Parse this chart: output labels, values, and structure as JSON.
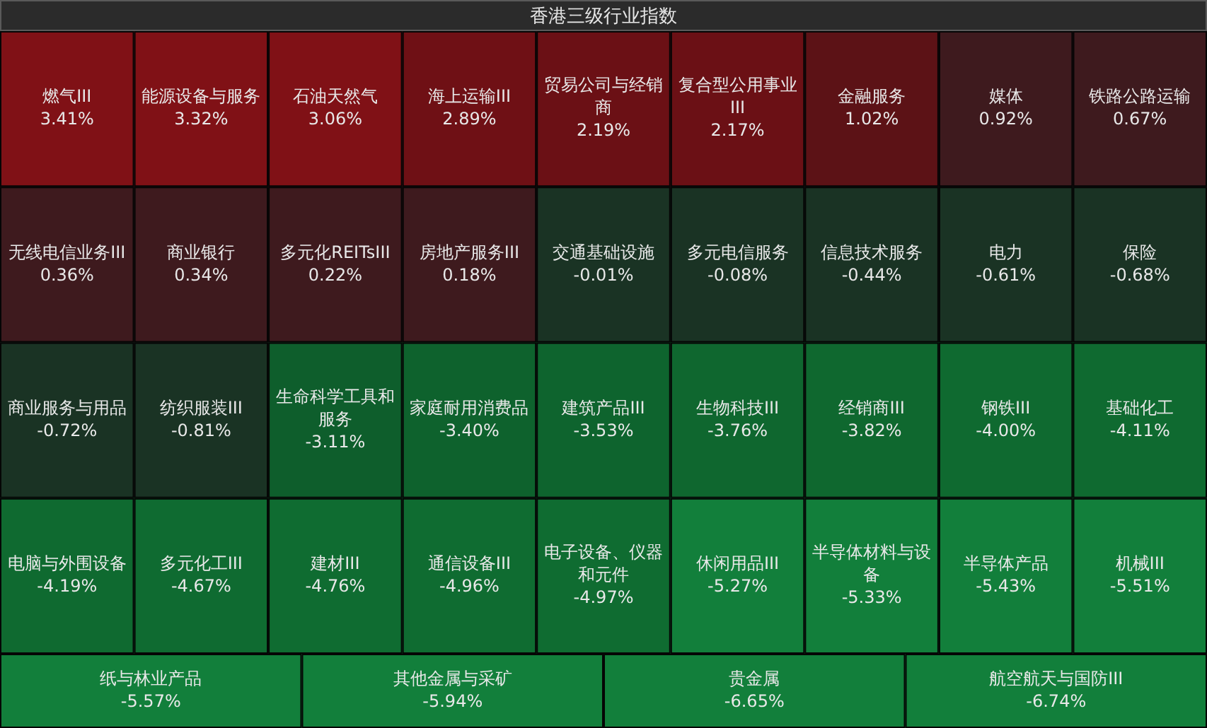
{
  "chart_data": {
    "type": "other",
    "title": "香港三级行业指数",
    "categories": [
      "燃气III",
      "能源设备与服务",
      "石油天然气",
      "海上运输III",
      "贸易公司与经销商",
      "复合型公用事业III",
      "金融服务",
      "媒体",
      "铁路公路运输",
      "无线电信业务III",
      "商业银行",
      "多元化REITsIII",
      "房地产服务III",
      "交通基础设施",
      "多元电信服务",
      "信息技术服务",
      "电力",
      "保险",
      "商业服务与用品",
      "纺织服装III",
      "生命科学工具和服务",
      "家庭耐用消费品",
      "建筑产品III",
      "生物科技III",
      "经销商III",
      "钢铁III",
      "基础化工",
      "电脑与外围设备",
      "多元化工III",
      "建材III",
      "通信设备III",
      "电子设备、仪器和元件",
      "休闲用品III",
      "半导体材料与设备",
      "半导体产品",
      "机械III",
      "纸与林业产品",
      "其他金属与采矿",
      "贵金属",
      "航空航天与国防III"
    ],
    "values": [
      3.41,
      3.32,
      3.06,
      2.89,
      2.19,
      2.17,
      1.02,
      0.92,
      0.67,
      0.36,
      0.34,
      0.22,
      0.18,
      -0.01,
      -0.08,
      -0.44,
      -0.61,
      -0.68,
      -0.72,
      -0.81,
      -3.11,
      -3.4,
      -3.53,
      -3.76,
      -3.82,
      -4.0,
      -4.11,
      -4.19,
      -4.67,
      -4.76,
      -4.96,
      -4.97,
      -5.27,
      -5.33,
      -5.43,
      -5.51,
      -5.57,
      -5.94,
      -6.65,
      -6.74
    ],
    "value_labels": [
      "3.41%",
      "3.32%",
      "3.06%",
      "2.89%",
      "2.19%",
      "2.17%",
      "1.02%",
      "0.92%",
      "0.67%",
      "0.36%",
      "0.34%",
      "0.22%",
      "0.18%",
      "-0.01%",
      "-0.08%",
      "-0.44%",
      "-0.61%",
      "-0.68%",
      "-0.72%",
      "-0.81%",
      "-3.11%",
      "-3.40%",
      "-3.53%",
      "-3.76%",
      "-3.82%",
      "-4.00%",
      "-4.11%",
      "-4.19%",
      "-4.67%",
      "-4.76%",
      "-4.96%",
      "-4.97%",
      "-5.27%",
      "-5.33%",
      "-5.43%",
      "-5.51%",
      "-5.57%",
      "-5.94%",
      "-6.65%",
      "-6.74%"
    ]
  }
}
